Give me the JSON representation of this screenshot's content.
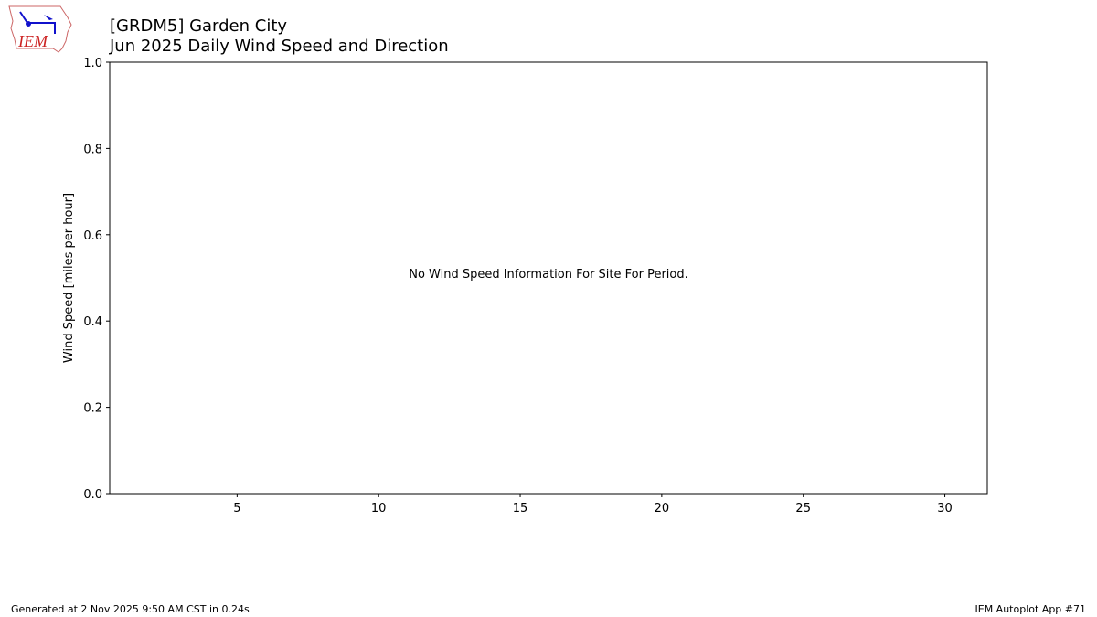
{
  "header": {
    "title_line1": "[GRDM5] Garden City",
    "title_line2": "Jun 2025 Daily Wind Speed and Direction",
    "logo_text": "IEM"
  },
  "chart_data": {
    "type": "bar",
    "title": "[GRDM5] Garden City\nJun 2025 Daily Wind Speed and Direction",
    "xlabel": "",
    "ylabel": "Wind Speed [miles per hour]",
    "xlim": [
      0.5,
      31.5
    ],
    "ylim": [
      0,
      1
    ],
    "xticks": [
      5,
      10,
      15,
      20,
      25,
      30
    ],
    "yticks": [
      "0.0",
      "0.2",
      "0.4",
      "0.6",
      "0.8",
      "1.0"
    ],
    "grid": false,
    "series": [],
    "annotation": "No Wind Speed Information For Site For Period."
  },
  "footer": {
    "left": "Generated at 2 Nov 2025 9:50 AM CST in 0.24s",
    "right": "IEM Autoplot App #71"
  },
  "colors": {
    "logo_red": "#cc2222",
    "logo_blue": "#1111cc"
  }
}
